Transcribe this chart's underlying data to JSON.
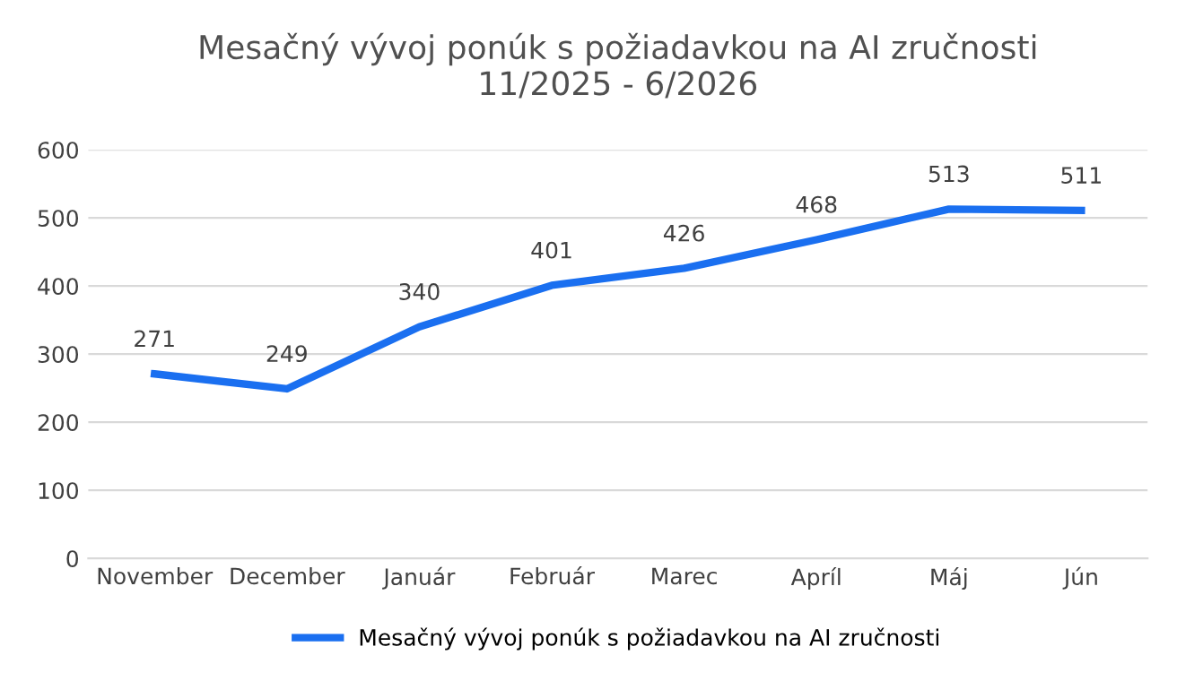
{
  "chart_data": {
    "type": "line",
    "title": "Mesačný vývoj ponúk s požiadavkou na AI zručnosti\n11/2025 - 6/2026",
    "categories": [
      "November",
      "December",
      "Január",
      "Február",
      "Marec",
      "Apríl",
      "Máj",
      "Jún"
    ],
    "series": [
      {
        "name": "Mesačný vývoj ponúk s požiadavkou na AI zručnosti",
        "color": "#1a6ff0",
        "values": [
          271,
          249,
          340,
          401,
          426,
          468,
          513,
          511
        ]
      }
    ],
    "ylim": [
      0,
      600
    ],
    "yticks": [
      0,
      100,
      200,
      300,
      400,
      500,
      600
    ],
    "grid": "y",
    "legend": "bottom",
    "data_labels": true,
    "marker": "none",
    "line_style": "solid"
  }
}
